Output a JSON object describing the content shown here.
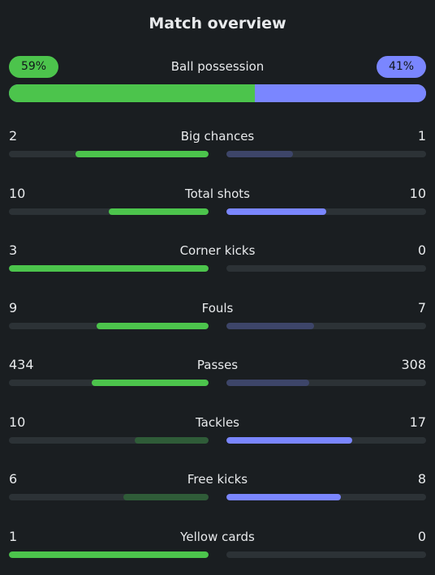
{
  "title": "Match overview",
  "possession": {
    "label": "Ball possession",
    "home": "59%",
    "away": "41%",
    "home_value": 59,
    "away_value": 41
  },
  "colors": {
    "home_strong": "#4cc44c",
    "home_weak": "#2f5c38",
    "away_strong": "#7a86ff",
    "away_weak": "#3d4569",
    "track": "#2c3236"
  },
  "stats": [
    {
      "label": "Big chances",
      "home": "2",
      "away": "1"
    },
    {
      "label": "Total shots",
      "home": "10",
      "away": "10"
    },
    {
      "label": "Corner kicks",
      "home": "3",
      "away": "0"
    },
    {
      "label": "Fouls",
      "home": "9",
      "away": "7"
    },
    {
      "label": "Passes",
      "home": "434",
      "away": "308"
    },
    {
      "label": "Tackles",
      "home": "10",
      "away": "17"
    },
    {
      "label": "Free kicks",
      "home": "6",
      "away": "8"
    },
    {
      "label": "Yellow cards",
      "home": "1",
      "away": "0"
    }
  ]
}
